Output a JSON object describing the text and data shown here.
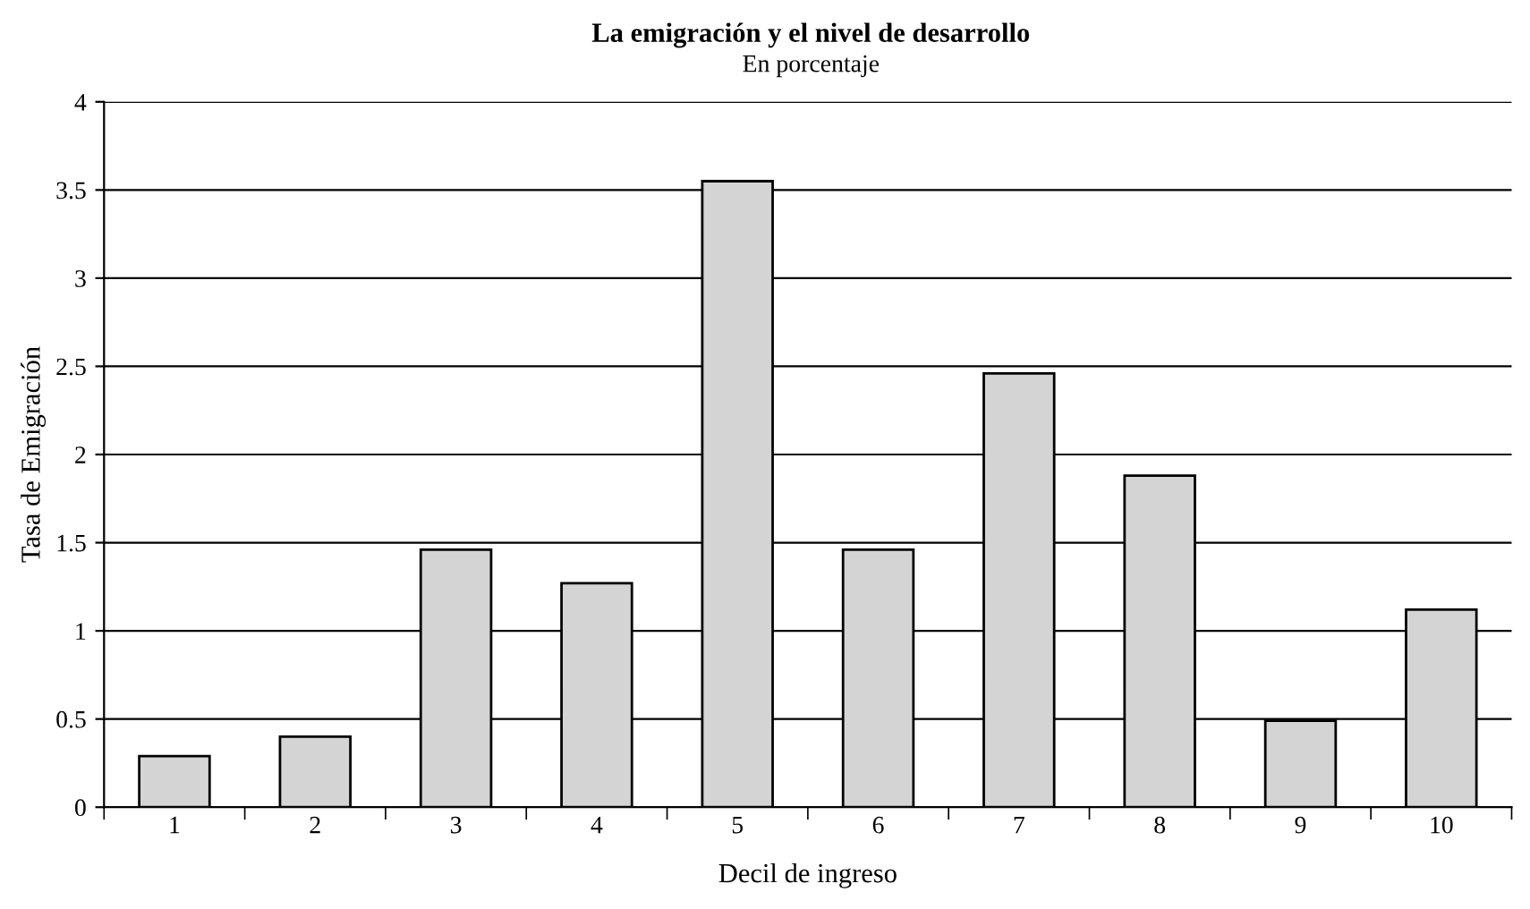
{
  "chart_data": {
    "type": "bar",
    "title": "La emigración y el nivel de desarrollo",
    "subtitle": "En porcentaje",
    "xlabel": "Decil de ingreso",
    "ylabel": "Tasa de Emigración",
    "categories": [
      "1",
      "2",
      "3",
      "4",
      "5",
      "6",
      "7",
      "8",
      "9",
      "10"
    ],
    "values": [
      0.29,
      0.4,
      1.46,
      1.27,
      3.55,
      1.46,
      2.46,
      1.88,
      0.49,
      1.12
    ],
    "color": "#d4d4d4",
    "ylim": [
      0,
      4
    ],
    "yticks": [
      0,
      0.5,
      1,
      1.5,
      2,
      2.5,
      3,
      3.5,
      4
    ],
    "grid": "y",
    "legend": false
  }
}
